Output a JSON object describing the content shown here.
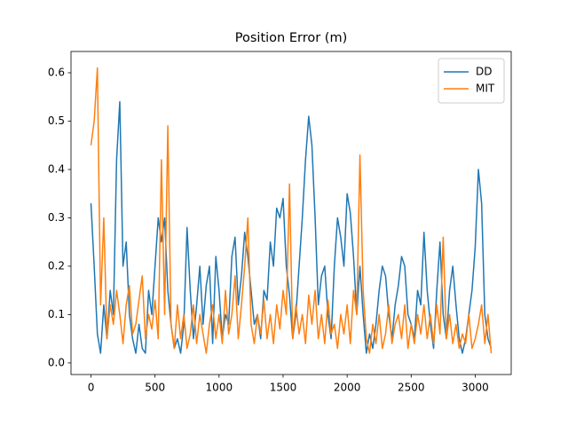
{
  "chart_data": {
    "type": "line",
    "title": "Position Error (m)",
    "x": [
      0,
      25,
      50,
      75,
      100,
      125,
      150,
      175,
      200,
      225,
      250,
      275,
      300,
      325,
      350,
      375,
      400,
      425,
      450,
      475,
      500,
      525,
      550,
      575,
      600,
      625,
      650,
      675,
      700,
      725,
      750,
      775,
      800,
      825,
      850,
      875,
      900,
      925,
      950,
      975,
      1000,
      1025,
      1050,
      1075,
      1100,
      1125,
      1150,
      1175,
      1200,
      1225,
      1250,
      1275,
      1300,
      1325,
      1350,
      1375,
      1400,
      1425,
      1450,
      1475,
      1500,
      1525,
      1550,
      1575,
      1600,
      1625,
      1650,
      1675,
      1700,
      1725,
      1750,
      1775,
      1800,
      1825,
      1850,
      1875,
      1900,
      1925,
      1950,
      1975,
      2000,
      2025,
      2050,
      2075,
      2100,
      2125,
      2150,
      2175,
      2200,
      2225,
      2250,
      2275,
      2300,
      2325,
      2350,
      2375,
      2400,
      2425,
      2450,
      2475,
      2500,
      2525,
      2550,
      2575,
      2600,
      2625,
      2650,
      2675,
      2700,
      2725,
      2750,
      2775,
      2800,
      2825,
      2850,
      2875,
      2900,
      2925,
      2950,
      2975,
      3000,
      3025,
      3050,
      3075,
      3100,
      3125
    ],
    "series": [
      {
        "name": "DD",
        "color": "#1f77b4",
        "values": [
          0.33,
          0.2,
          0.06,
          0.02,
          0.12,
          0.05,
          0.15,
          0.1,
          0.42,
          0.54,
          0.2,
          0.25,
          0.1,
          0.05,
          0.02,
          0.08,
          0.03,
          0.02,
          0.15,
          0.1,
          0.2,
          0.3,
          0.25,
          0.3,
          0.15,
          0.08,
          0.03,
          0.05,
          0.02,
          0.08,
          0.28,
          0.15,
          0.05,
          0.12,
          0.2,
          0.08,
          0.16,
          0.2,
          0.04,
          0.22,
          0.15,
          0.05,
          0.1,
          0.08,
          0.22,
          0.26,
          0.12,
          0.18,
          0.27,
          0.22,
          0.15,
          0.08,
          0.1,
          0.05,
          0.15,
          0.13,
          0.25,
          0.2,
          0.32,
          0.3,
          0.34,
          0.2,
          0.14,
          0.05,
          0.1,
          0.2,
          0.3,
          0.42,
          0.51,
          0.45,
          0.3,
          0.12,
          0.18,
          0.2,
          0.1,
          0.05,
          0.2,
          0.3,
          0.26,
          0.2,
          0.35,
          0.31,
          0.22,
          0.1,
          0.2,
          0.1,
          0.02,
          0.06,
          0.03,
          0.08,
          0.15,
          0.2,
          0.18,
          0.1,
          0.05,
          0.12,
          0.16,
          0.22,
          0.2,
          0.1,
          0.08,
          0.05,
          0.15,
          0.12,
          0.27,
          0.15,
          0.08,
          0.03,
          0.15,
          0.25,
          0.1,
          0.05,
          0.15,
          0.2,
          0.12,
          0.05,
          0.02,
          0.05,
          0.1,
          0.15,
          0.24,
          0.4,
          0.33,
          0.1,
          0.05,
          0.03
        ]
      },
      {
        "name": "MIT",
        "color": "#ff7f0e",
        "values": [
          0.45,
          0.5,
          0.61,
          0.12,
          0.3,
          0.05,
          0.12,
          0.08,
          0.15,
          0.1,
          0.04,
          0.12,
          0.16,
          0.06,
          0.08,
          0.13,
          0.18,
          0.05,
          0.1,
          0.07,
          0.13,
          0.05,
          0.42,
          0.1,
          0.49,
          0.08,
          0.03,
          0.12,
          0.05,
          0.1,
          0.03,
          0.06,
          0.12,
          0.04,
          0.1,
          0.06,
          0.02,
          0.08,
          0.12,
          0.05,
          0.1,
          0.04,
          0.15,
          0.06,
          0.1,
          0.18,
          0.05,
          0.12,
          0.2,
          0.3,
          0.08,
          0.04,
          0.1,
          0.06,
          0.13,
          0.05,
          0.1,
          0.04,
          0.12,
          0.07,
          0.15,
          0.1,
          0.37,
          0.05,
          0.12,
          0.06,
          0.1,
          0.04,
          0.14,
          0.08,
          0.15,
          0.05,
          0.1,
          0.04,
          0.13,
          0.06,
          0.08,
          0.03,
          0.1,
          0.06,
          0.12,
          0.04,
          0.15,
          0.1,
          0.43,
          0.15,
          0.05,
          0.02,
          0.08,
          0.04,
          0.1,
          0.03,
          0.06,
          0.12,
          0.04,
          0.08,
          0.1,
          0.05,
          0.12,
          0.03,
          0.08,
          0.04,
          0.1,
          0.06,
          0.12,
          0.05,
          0.1,
          0.04,
          0.12,
          0.06,
          0.26,
          0.05,
          0.1,
          0.04,
          0.08,
          0.03,
          0.06,
          0.04,
          0.1,
          0.03,
          0.05,
          0.08,
          0.12,
          0.04,
          0.1,
          0.02
        ]
      }
    ],
    "xlim": [
      -156,
      3281
    ],
    "ylim": [
      -0.024,
      0.644
    ],
    "xticks": [
      0,
      500,
      1000,
      1500,
      2000,
      2500,
      3000
    ],
    "yticks": [
      {
        "value": 0,
        "label": "0.0"
      },
      0.1,
      0.2,
      0.3,
      0.4,
      0.5,
      0.6
    ],
    "legend": "upper right"
  }
}
